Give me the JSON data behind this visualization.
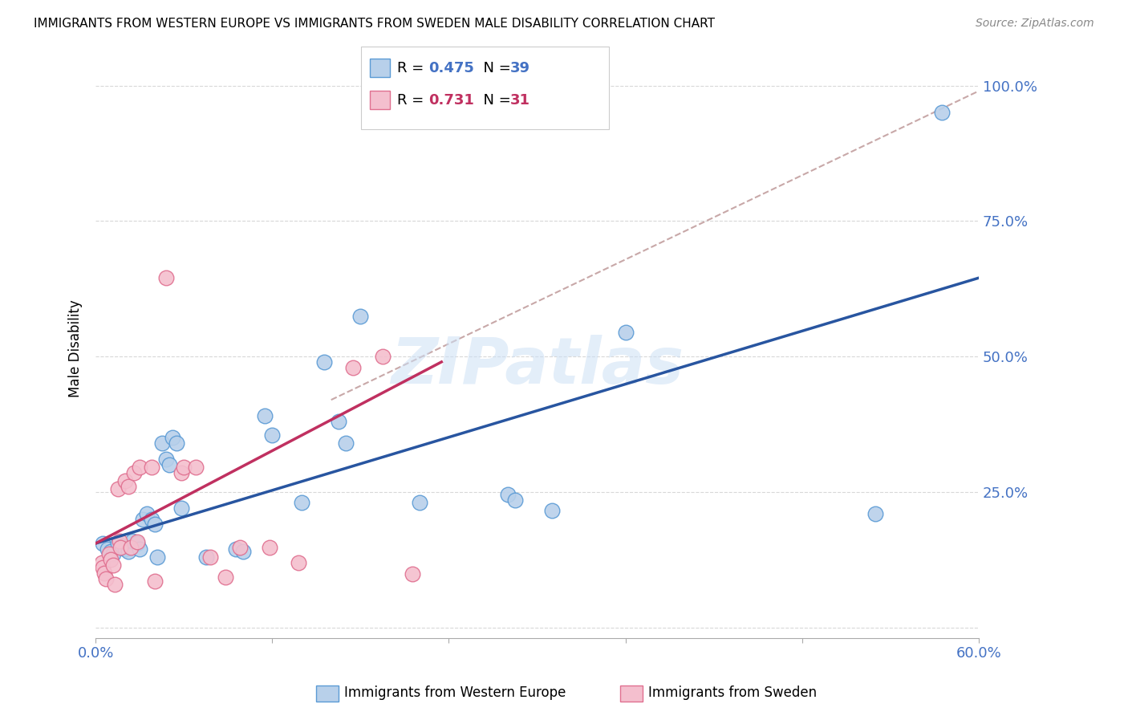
{
  "title": "IMMIGRANTS FROM WESTERN EUROPE VS IMMIGRANTS FROM SWEDEN MALE DISABILITY CORRELATION CHART",
  "source": "Source: ZipAtlas.com",
  "ylabel": "Male Disability",
  "xlim": [
    0.0,
    0.6
  ],
  "ylim": [
    -0.02,
    1.05
  ],
  "xticks": [
    0.0,
    0.12,
    0.24,
    0.36,
    0.48,
    0.6
  ],
  "xticklabels": [
    "0.0%",
    "",
    "",
    "",
    "",
    "60.0%"
  ],
  "yticks": [
    0.0,
    0.25,
    0.5,
    0.75,
    1.0
  ],
  "yticklabels": [
    "",
    "25.0%",
    "50.0%",
    "75.0%",
    "100.0%"
  ],
  "R_blue": 0.475,
  "N_blue": 39,
  "R_pink": 0.731,
  "N_pink": 31,
  "blue_color": "#b8d0ea",
  "blue_edge": "#5b9bd5",
  "pink_color": "#f4bfce",
  "pink_edge": "#e07090",
  "blue_line_color": "#2855a0",
  "pink_line_color": "#c03060",
  "dashed_line_color": "#c8a8a8",
  "watermark": "ZIPatlas",
  "scatter_blue": [
    [
      0.005,
      0.155
    ],
    [
      0.008,
      0.145
    ],
    [
      0.01,
      0.14
    ],
    [
      0.012,
      0.135
    ],
    [
      0.015,
      0.155
    ],
    [
      0.018,
      0.15
    ],
    [
      0.02,
      0.145
    ],
    [
      0.022,
      0.14
    ],
    [
      0.025,
      0.16
    ],
    [
      0.028,
      0.155
    ],
    [
      0.03,
      0.145
    ],
    [
      0.032,
      0.2
    ],
    [
      0.035,
      0.21
    ],
    [
      0.038,
      0.2
    ],
    [
      0.04,
      0.19
    ],
    [
      0.042,
      0.13
    ],
    [
      0.045,
      0.34
    ],
    [
      0.048,
      0.31
    ],
    [
      0.05,
      0.3
    ],
    [
      0.052,
      0.35
    ],
    [
      0.055,
      0.34
    ],
    [
      0.058,
      0.22
    ],
    [
      0.075,
      0.13
    ],
    [
      0.095,
      0.145
    ],
    [
      0.1,
      0.14
    ],
    [
      0.115,
      0.39
    ],
    [
      0.12,
      0.355
    ],
    [
      0.14,
      0.23
    ],
    [
      0.155,
      0.49
    ],
    [
      0.165,
      0.38
    ],
    [
      0.17,
      0.34
    ],
    [
      0.18,
      0.575
    ],
    [
      0.22,
      0.23
    ],
    [
      0.28,
      0.245
    ],
    [
      0.285,
      0.235
    ],
    [
      0.31,
      0.215
    ],
    [
      0.36,
      0.545
    ],
    [
      0.53,
      0.21
    ],
    [
      0.575,
      0.95
    ]
  ],
  "scatter_pink": [
    [
      0.004,
      0.12
    ],
    [
      0.005,
      0.11
    ],
    [
      0.006,
      0.1
    ],
    [
      0.007,
      0.09
    ],
    [
      0.009,
      0.135
    ],
    [
      0.01,
      0.125
    ],
    [
      0.012,
      0.115
    ],
    [
      0.013,
      0.08
    ],
    [
      0.015,
      0.255
    ],
    [
      0.016,
      0.16
    ],
    [
      0.017,
      0.148
    ],
    [
      0.02,
      0.27
    ],
    [
      0.022,
      0.26
    ],
    [
      0.024,
      0.148
    ],
    [
      0.026,
      0.285
    ],
    [
      0.028,
      0.158
    ],
    [
      0.03,
      0.295
    ],
    [
      0.038,
      0.295
    ],
    [
      0.04,
      0.085
    ],
    [
      0.048,
      0.645
    ],
    [
      0.058,
      0.285
    ],
    [
      0.06,
      0.295
    ],
    [
      0.068,
      0.295
    ],
    [
      0.078,
      0.13
    ],
    [
      0.088,
      0.092
    ],
    [
      0.098,
      0.148
    ],
    [
      0.118,
      0.148
    ],
    [
      0.138,
      0.12
    ],
    [
      0.175,
      0.48
    ],
    [
      0.195,
      0.5
    ],
    [
      0.215,
      0.098
    ]
  ],
  "blue_trendline": [
    [
      0.0,
      0.155
    ],
    [
      0.6,
      0.645
    ]
  ],
  "pink_trendline": [
    [
      0.0,
      0.155
    ],
    [
      0.235,
      0.49
    ]
  ],
  "dashed_trendline": [
    [
      0.16,
      0.42
    ],
    [
      0.6,
      0.99
    ]
  ]
}
